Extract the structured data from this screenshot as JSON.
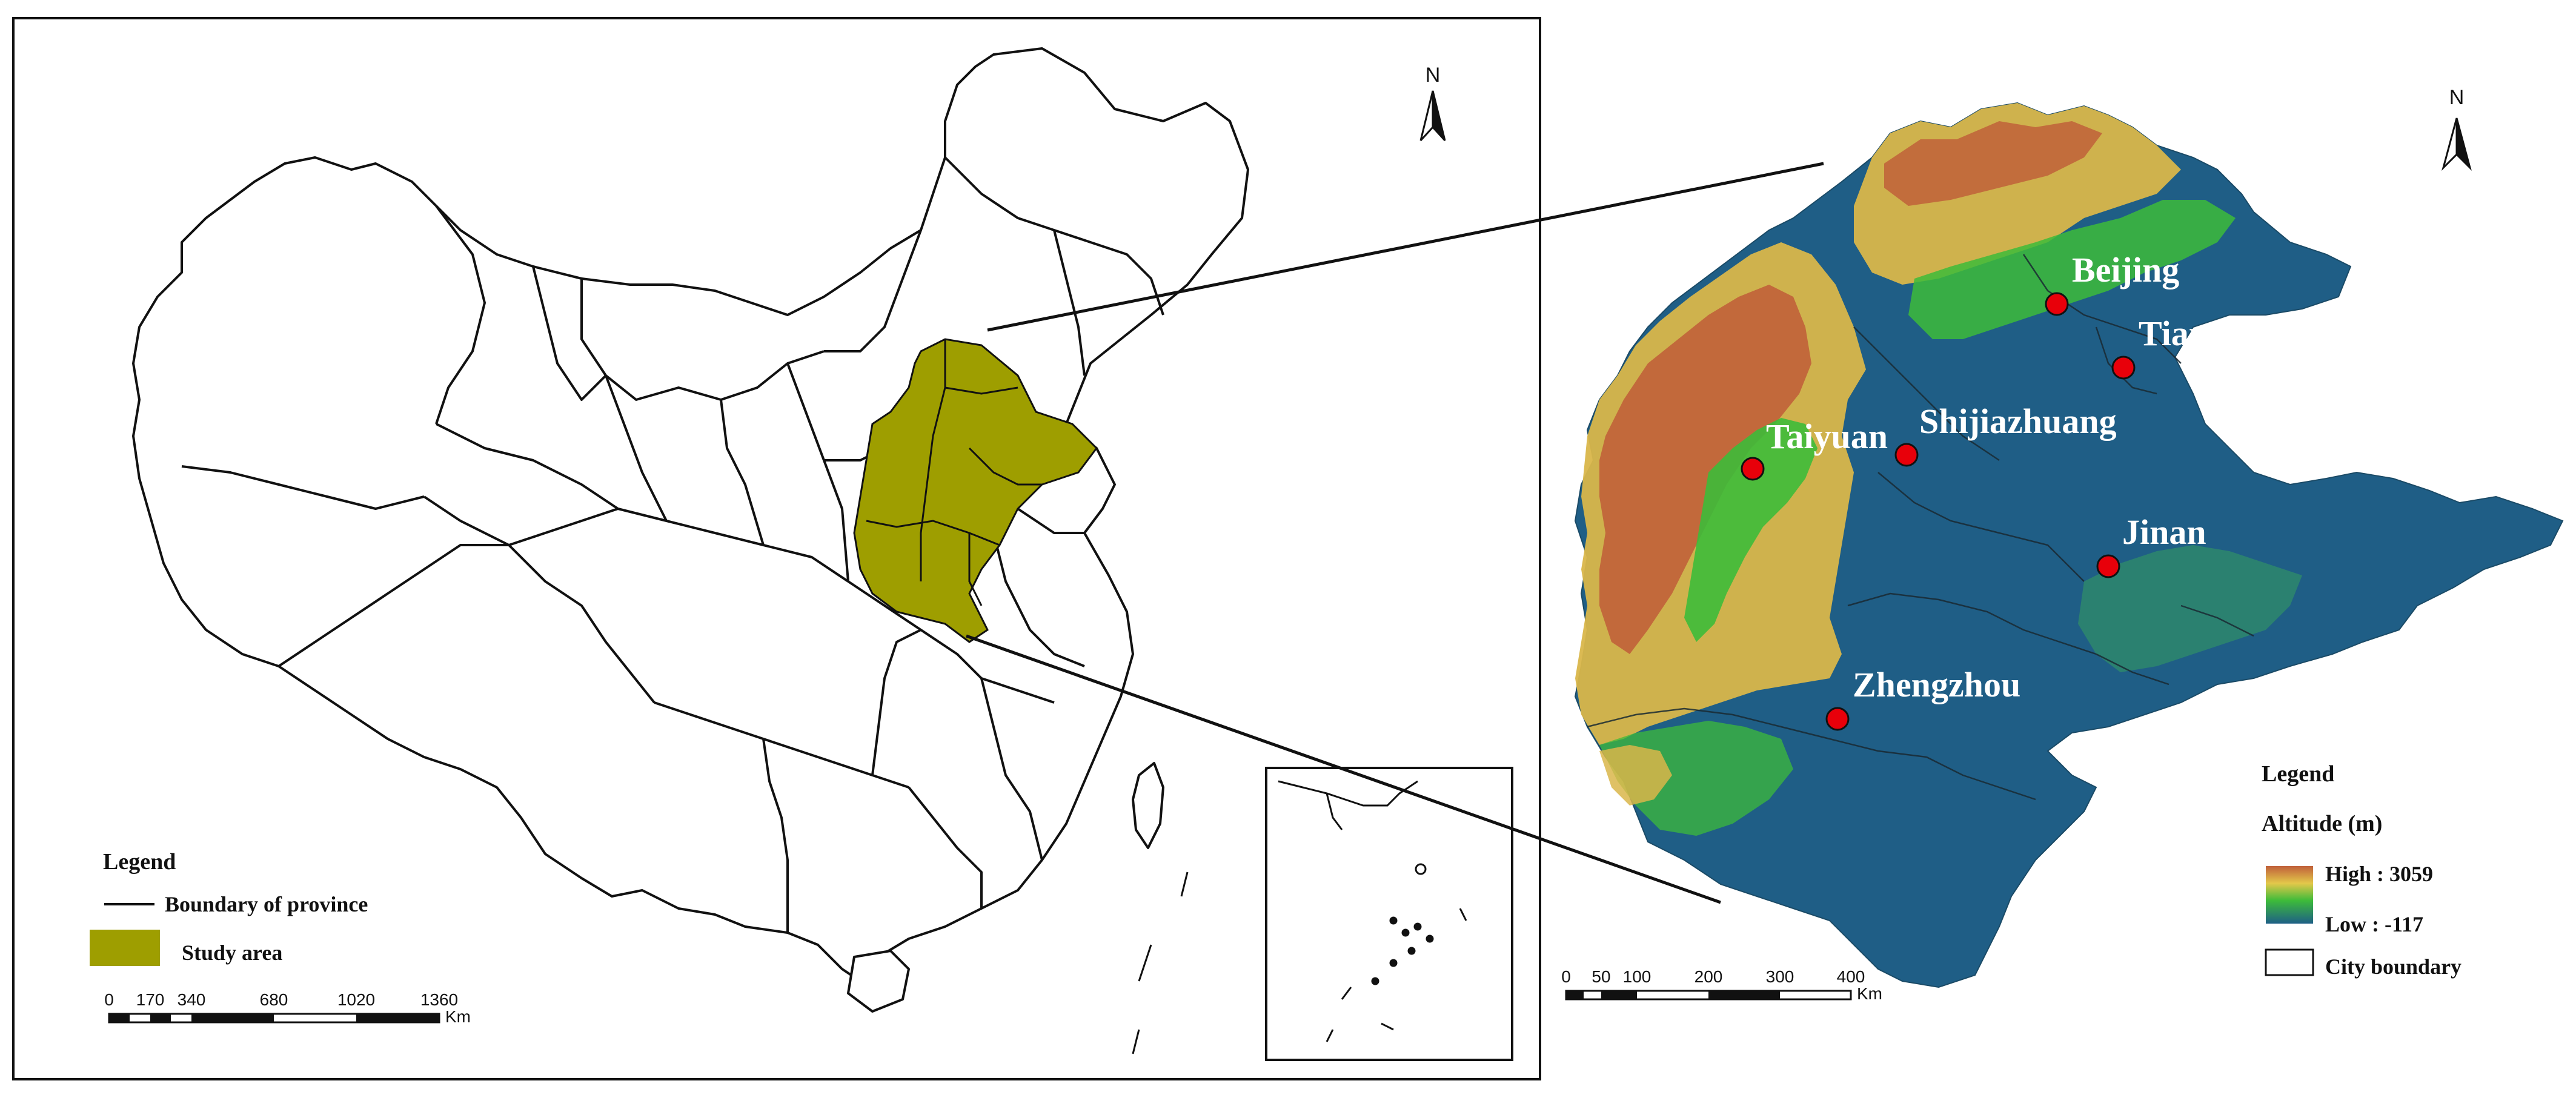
{
  "left_map": {
    "north_label": "N",
    "legend": {
      "title": "Legend",
      "boundary_label": "Boundary of province",
      "study_area_label": "Study area",
      "study_area_color": "#9e9e00"
    },
    "scale": {
      "ticks": [
        "0",
        "170",
        "340",
        "680",
        "1020",
        "1360"
      ],
      "unit": "Km"
    }
  },
  "right_map": {
    "north_label": "N",
    "cities": [
      {
        "name": "Beijing"
      },
      {
        "name": "Tianjin"
      },
      {
        "name": "Shijiazhuang"
      },
      {
        "name": "Taiyuan"
      },
      {
        "name": "Jinan"
      },
      {
        "name": "Zhengzhou"
      }
    ],
    "city_marker_color": "#e8000a",
    "legend": {
      "title": "Legend",
      "altitude_title": "Altitude (m)",
      "high_label": "High : 3059",
      "low_label": "Low : -117",
      "city_boundary_label": "City boundary"
    },
    "scale": {
      "ticks": [
        "0",
        "50",
        "100",
        "200",
        "300",
        "400"
      ],
      "unit": "Km"
    },
    "colors": {
      "high": "#c0603a",
      "mid_high": "#e3c84a",
      "mid": "#3dbb3a",
      "low": "#1e5f86"
    }
  }
}
